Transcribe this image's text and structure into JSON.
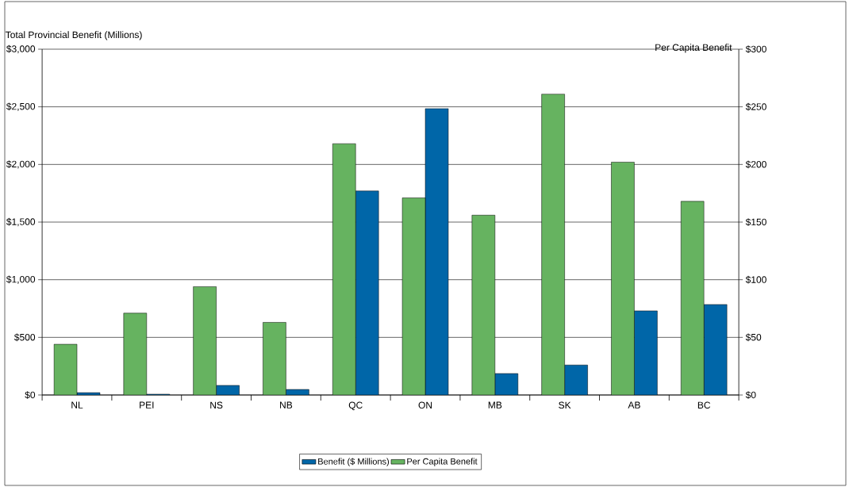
{
  "chart_data": {
    "type": "bar",
    "ylabel": "Total Provincial Benefit (Millions)",
    "y2label": "Per Capita Benefit",
    "categories": [
      "NL",
      "PEI",
      "NS",
      "NB",
      "QC",
      "ON",
      "MB",
      "SK",
      "AB",
      "BC"
    ],
    "series": [
      {
        "name": "Per Capita Benefit",
        "color": "#66b360",
        "axis": "y2",
        "values": [
          44,
          71,
          94,
          63,
          218,
          171,
          156,
          261,
          202,
          168
        ]
      },
      {
        "name": "Benefit ($ Millions)",
        "color": "#0066a8",
        "values": [
          20,
          7,
          83,
          48,
          1770,
          2485,
          186,
          260,
          730,
          785
        ]
      }
    ],
    "ylim": [
      0,
      3000
    ],
    "yticks": [
      {
        "value": 0,
        "label": "$0"
      },
      {
        "value": 500,
        "label": "$500"
      },
      {
        "value": 1000,
        "label": "$1,000"
      },
      {
        "value": 1500,
        "label": "$1,500"
      },
      {
        "value": 2000,
        "label": "$2,000"
      },
      {
        "value": 2500,
        "label": "$2,500"
      },
      {
        "value": 3000,
        "label": "$3,000"
      }
    ],
    "y2lim": [
      0,
      300
    ],
    "y2ticks": [
      {
        "value": 0,
        "label": "$0"
      },
      {
        "value": 50,
        "label": "$50"
      },
      {
        "value": 100,
        "label": "$100"
      },
      {
        "value": 150,
        "label": "$150"
      },
      {
        "value": 200,
        "label": "$200"
      },
      {
        "value": 250,
        "label": "$250"
      },
      {
        "value": 300,
        "label": "$300"
      }
    ],
    "grid": "y",
    "legend": "bottom"
  }
}
